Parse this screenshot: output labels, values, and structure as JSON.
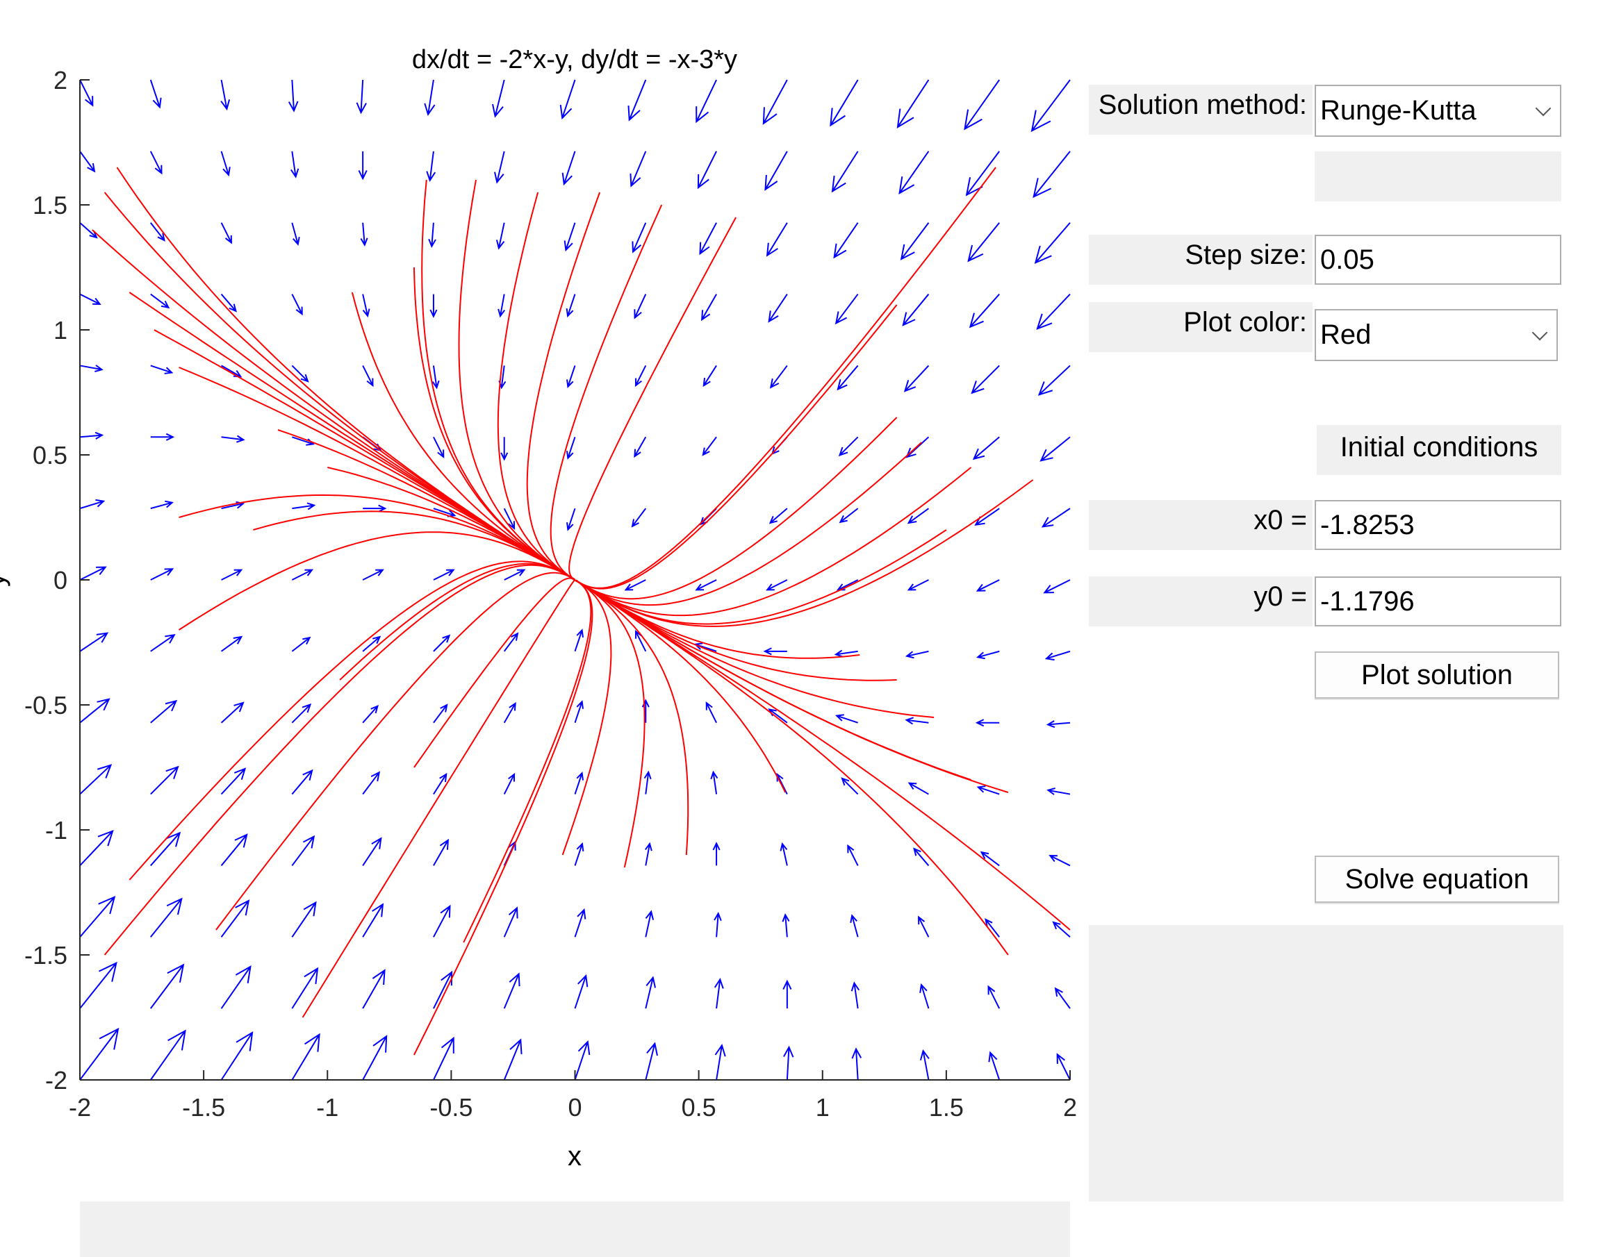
{
  "plot": {
    "title": "dx/dt = -2*x-y, dy/dt = -x-3*y",
    "xlabel": "x",
    "ylabel": "y",
    "xticks": [
      "-2",
      "-1.5",
      "-1",
      "-0.5",
      "0",
      "0.5",
      "1",
      "1.5",
      "2"
    ],
    "yticks": [
      "2",
      "1.5",
      "1",
      "0.5",
      "0",
      "-0.5",
      "-1",
      "-1.5",
      "-2"
    ],
    "field_color": "#0000ff",
    "trajectory_color": "#ff0000"
  },
  "chart_data": {
    "type": "line",
    "title": "dx/dt = -2*x-y, dy/dt = -x-3*y",
    "xlabel": "x",
    "ylabel": "y",
    "xlim": [
      -2,
      2
    ],
    "ylim": [
      -2,
      2
    ],
    "system": {
      "dx_dt": "-2*x-y",
      "dy_dt": "-x-3*y"
    },
    "direction_field_grid": {
      "x": [
        -2,
        2
      ],
      "y": [
        -2,
        2
      ],
      "n": 15
    },
    "trajectory_starts": [
      [
        -1.85,
        1.65
      ],
      [
        -1.9,
        1.55
      ],
      [
        -1.95,
        1.4
      ],
      [
        -1.8,
        1.15
      ],
      [
        -1.7,
        1.0
      ],
      [
        -1.6,
        0.85
      ],
      [
        -1.2,
        0.6
      ],
      [
        -1.0,
        0.45
      ],
      [
        -1.6,
        0.25
      ],
      [
        -1.3,
        0.2
      ],
      [
        -1.6,
        -0.2
      ],
      [
        -1.8,
        -1.2
      ],
      [
        -1.9,
        -1.5
      ],
      [
        -1.45,
        -1.4
      ],
      [
        -1.1,
        -1.75
      ],
      [
        -0.65,
        -1.9
      ],
      [
        -0.45,
        -1.45
      ],
      [
        -0.95,
        -0.4
      ],
      [
        -0.65,
        -0.75
      ],
      [
        -0.05,
        -1.1
      ],
      [
        0.2,
        -1.15
      ],
      [
        0.45,
        -1.1
      ],
      [
        0.85,
        -0.85
      ],
      [
        -0.9,
        1.15
      ],
      [
        -0.65,
        1.25
      ],
      [
        -0.6,
        1.6
      ],
      [
        -0.4,
        1.6
      ],
      [
        -0.15,
        1.55
      ],
      [
        0.1,
        1.55
      ],
      [
        0.35,
        1.5
      ],
      [
        0.65,
        1.45
      ],
      [
        1.3,
        1.1
      ],
      [
        1.7,
        1.65
      ],
      [
        1.4,
        0.55
      ],
      [
        1.6,
        0.45
      ],
      [
        1.85,
        0.4
      ],
      [
        1.5,
        0.2
      ],
      [
        1.15,
        -0.3
      ],
      [
        1.45,
        -0.55
      ],
      [
        1.75,
        -0.85
      ],
      [
        2.0,
        -1.4
      ],
      [
        1.75,
        -1.5
      ],
      [
        1.6,
        -0.8
      ],
      [
        1.3,
        -0.4
      ],
      [
        1.3,
        0.65
      ]
    ],
    "trajectory_t_max": 3.5,
    "legend": "none",
    "grid": false
  },
  "panel": {
    "solution_method_label": "Solution method:",
    "solution_method_value": "Runge-Kutta",
    "step_size_label": "Step size:",
    "step_size_value": "0.05",
    "plot_color_label": "Plot color:",
    "plot_color_value": "Red",
    "initial_conditions_label": "Initial conditions",
    "x0_label": "x0 =",
    "x0_value": "-1.8253",
    "y0_label": "y0 =",
    "y0_value": "-1.1796",
    "plot_solution_button": "Plot solution",
    "solve_equation_button": "Solve equation"
  }
}
